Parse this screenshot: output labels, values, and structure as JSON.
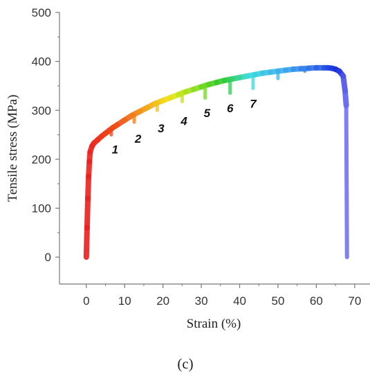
{
  "chart_data": {
    "type": "line",
    "title": "",
    "xlabel": "Strain (%)",
    "ylabel": "Tensile stress (MPa)",
    "xlim": [
      -7,
      74
    ],
    "ylim": [
      -55,
      500
    ],
    "xticks": [
      0,
      10,
      20,
      30,
      40,
      50,
      60,
      70
    ],
    "yticks": [
      0,
      100,
      200,
      300,
      400,
      500
    ],
    "grid": false,
    "legend": "none",
    "series": [
      {
        "x": [
          0,
          0.2,
          0.4,
          0.6,
          0.8,
          1.0,
          1.5,
          2.0,
          3,
          4,
          5,
          6,
          7,
          8,
          10,
          12,
          14,
          16,
          18,
          20,
          22,
          24,
          26,
          28,
          30,
          32,
          34,
          36,
          38,
          40,
          42,
          44,
          46,
          48,
          50,
          52,
          54,
          56,
          58,
          60,
          62,
          63,
          64,
          65,
          66,
          67,
          67.5,
          67.8,
          68.0
        ],
        "y": [
          0,
          60,
          120,
          165,
          195,
          215,
          227,
          233,
          240,
          247,
          253,
          259,
          265,
          270,
          280,
          290,
          298,
          306,
          314,
          320,
          326,
          332,
          338,
          343,
          348,
          353,
          357,
          361,
          364,
          367,
          370,
          373,
          376,
          378,
          380,
          382,
          384,
          385,
          386,
          387,
          387,
          387,
          386,
          384,
          380,
          370,
          340,
          310,
          0
        ]
      }
    ],
    "serration_drops": [
      {
        "x": 6.5,
        "top": 262,
        "bottom": 250
      },
      {
        "x": 12.5,
        "top": 290,
        "bottom": 276
      },
      {
        "x": 18.5,
        "top": 314,
        "bottom": 300
      },
      {
        "x": 25,
        "top": 338,
        "bottom": 318
      },
      {
        "x": 31,
        "top": 353,
        "bottom": 325
      },
      {
        "x": 37.5,
        "top": 364,
        "bottom": 335
      },
      {
        "x": 43.5,
        "top": 373,
        "bottom": 345
      },
      {
        "x": 50,
        "top": 380,
        "bottom": 365
      },
      {
        "x": 57,
        "top": 385,
        "bottom": 380
      }
    ],
    "annotations": [
      {
        "text": "1",
        "x": 7.5,
        "y": 212
      },
      {
        "text": "2",
        "x": 13.5,
        "y": 234
      },
      {
        "text": "3",
        "x": 19.5,
        "y": 255
      },
      {
        "text": "4",
        "x": 25.5,
        "y": 270
      },
      {
        "text": "5",
        "x": 31.5,
        "y": 286
      },
      {
        "text": "6",
        "x": 37.5,
        "y": 296
      },
      {
        "text": "7",
        "x": 43.5,
        "y": 305
      }
    ],
    "panel_label": "(c)"
  }
}
